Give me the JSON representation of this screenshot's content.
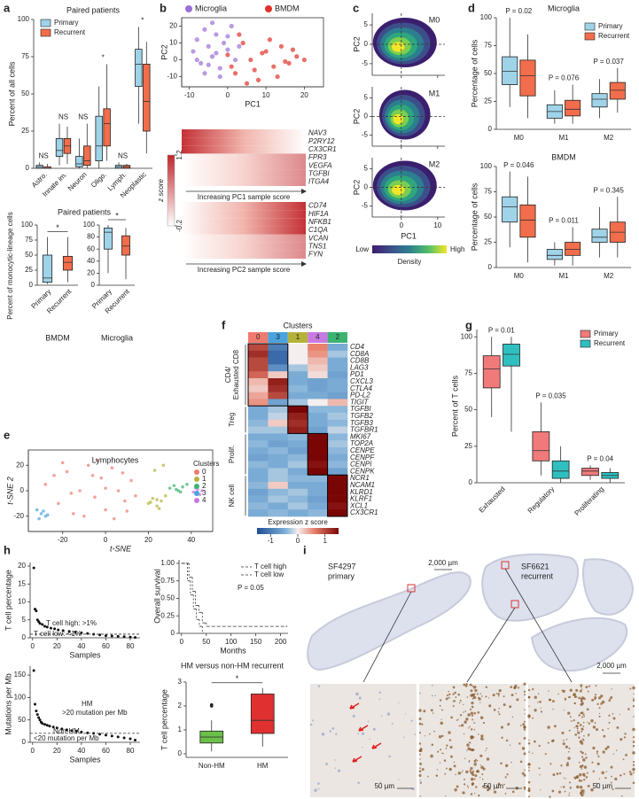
{
  "panel_labels": [
    "a",
    "b",
    "c",
    "d",
    "e",
    "f",
    "g",
    "h",
    "i"
  ],
  "a_top": {
    "title": "Paired patients",
    "ylabel": "Percent of all cells",
    "ylim": [
      0,
      100
    ],
    "yticks": [
      0,
      25,
      50,
      75,
      100
    ],
    "categories": [
      "Astro.",
      "Innate im.",
      "Neuron",
      "Oligo.",
      "Lymph.",
      "Neoplastic"
    ],
    "significance": [
      "NS",
      "NS",
      "NS",
      "*",
      "NS",
      "*"
    ],
    "series": [
      {
        "name": "Primary",
        "color": "#9fd3e8",
        "boxes": [
          [
            0,
            0,
            1,
            2,
            4
          ],
          [
            2,
            8,
            12,
            20,
            30
          ],
          [
            0,
            1,
            3,
            8,
            20
          ],
          [
            0,
            5,
            15,
            35,
            55
          ],
          [
            0,
            0,
            1,
            2,
            4
          ],
          [
            30,
            55,
            70,
            80,
            95
          ]
        ]
      },
      {
        "name": "Recurrent",
        "color": "#f26d4b",
        "boxes": [
          [
            0,
            0,
            0,
            1,
            3
          ],
          [
            3,
            10,
            15,
            20,
            28
          ],
          [
            0,
            2,
            5,
            15,
            30
          ],
          [
            5,
            15,
            30,
            40,
            70
          ],
          [
            0,
            0,
            1,
            2,
            3
          ],
          [
            10,
            25,
            45,
            70,
            85
          ]
        ]
      }
    ]
  },
  "a_bottom": {
    "title": "Paired patients",
    "ylabel": "Percent of monocytic-lineage cells",
    "bmdm": {
      "title": "BMDM",
      "ylim": [
        0,
        100
      ],
      "yticks": [
        0,
        25,
        50,
        75,
        100
      ],
      "categories": [
        "Primary",
        "Recurrent"
      ],
      "box_colors": [
        "#9fd3e8",
        "#f26d4b"
      ],
      "boxes": [
        [
          2,
          5,
          12,
          50,
          80
        ],
        [
          5,
          25,
          38,
          48,
          80
        ]
      ],
      "significance": "*"
    },
    "microglia": {
      "title": "Microglia",
      "ylim": [
        0,
        100
      ],
      "yticks": [
        0,
        20,
        40,
        60,
        80,
        100
      ],
      "categories": [
        "Primary",
        "Recurrent"
      ],
      "box_colors": [
        "#9fd3e8",
        "#f26d4b"
      ],
      "boxes": [
        [
          20,
          60,
          88,
          95,
          100
        ],
        [
          10,
          50,
          65,
          82,
          95
        ]
      ],
      "significance": "*"
    }
  },
  "b": {
    "xlabel": "PC1",
    "ylabel": "PC2",
    "xlim": [
      -12,
      25
    ],
    "xticks": [
      -10,
      0,
      10,
      20
    ],
    "ylim": [
      -16,
      25
    ],
    "yticks": [
      -10,
      0,
      10,
      20
    ],
    "series": [
      {
        "name": "Microglia",
        "color": "#9b6fd6",
        "x": [
          -9,
          -8,
          -7,
          -6,
          -5,
          -4,
          -3,
          -2,
          -1,
          0,
          1,
          2,
          -6,
          -4,
          -2,
          0,
          -8,
          -5,
          -3,
          3
        ],
        "y": [
          5,
          12,
          -2,
          18,
          8,
          2,
          15,
          -5,
          10,
          6,
          20,
          0,
          -8,
          22,
          -10,
          14,
          0,
          -3,
          4,
          8
        ]
      },
      {
        "name": "BMDM",
        "color": "#e0312b",
        "x": [
          0,
          2,
          4,
          6,
          8,
          10,
          12,
          14,
          16,
          18,
          20,
          3,
          7,
          11,
          15,
          5,
          9,
          13,
          17,
          1
        ],
        "y": [
          3,
          -8,
          10,
          0,
          -12,
          5,
          -4,
          8,
          -2,
          2,
          0,
          15,
          -6,
          12,
          -1,
          -14,
          4,
          -10,
          6,
          -4
        ]
      }
    ],
    "heatmap1": {
      "genes": [
        "NAV3",
        "P2RY12",
        "CX3CR1",
        "FPR3",
        "VEGFA",
        "TGFBI",
        "ITGA4"
      ],
      "caption": "Increasing PC1 sample score"
    },
    "heatmap2": {
      "genes": [
        "CD74",
        "HIF1A",
        "NFKB1",
        "C1QA",
        "VCAN",
        "TNS1",
        "FYN"
      ],
      "caption": "Increasing PC2 sample score"
    },
    "colorbar": {
      "label": "z score",
      "ticks": [
        1.2,
        -0.2
      ]
    }
  },
  "c": {
    "labels": [
      "M0",
      "M1",
      "M2"
    ],
    "ylabel": "PC2",
    "xlabel": "PC1",
    "xlim": [
      -8,
      12
    ],
    "xticks": [
      0,
      10
    ],
    "ylim": [
      -8,
      8
    ],
    "yticks": [
      -5,
      0,
      5
    ],
    "colorbar": {
      "low": "Low",
      "high": "High",
      "label": "Density"
    }
  },
  "d": {
    "microglia": {
      "title": "Microglia",
      "ylabel": "Percentage of cells",
      "ylim": [
        0,
        100
      ],
      "yticks": [
        0,
        25,
        50,
        75,
        100
      ],
      "categories": [
        "M0",
        "M1",
        "M2"
      ],
      "pvalues": [
        "P = 0.02",
        "P = 0.076",
        "P = 0.037"
      ],
      "series": [
        {
          "name": "Primary",
          "color": "#9fd3e8",
          "boxes": [
            [
              20,
              40,
              52,
              65,
              100
            ],
            [
              5,
              10,
              16,
              22,
              35
            ],
            [
              10,
              20,
              27,
              32,
              45
            ]
          ]
        },
        {
          "name": "Recurrent",
          "color": "#f26d4b",
          "boxes": [
            [
              10,
              30,
              48,
              62,
              85
            ],
            [
              5,
              12,
              18,
              26,
              40
            ],
            [
              15,
              27,
              35,
              42,
              55
            ]
          ]
        }
      ]
    },
    "bmdm": {
      "title": "BMDM",
      "ylabel": "Percentage of cells",
      "ylim": [
        0,
        100
      ],
      "yticks": [
        0,
        25,
        50,
        75,
        100
      ],
      "categories": [
        "M0",
        "M1",
        "M2"
      ],
      "pvalues": [
        "P = 0.046",
        "P = 0.011",
        "P = 0.345"
      ],
      "series": [
        {
          "color": "#9fd3e8",
          "boxes": [
            [
              20,
              45,
              60,
              70,
              95
            ],
            [
              2,
              8,
              12,
              18,
              25
            ],
            [
              10,
              25,
              30,
              38,
              60
            ]
          ]
        },
        {
          "color": "#f26d4b",
          "boxes": [
            [
              5,
              30,
              47,
              62,
              90
            ],
            [
              2,
              12,
              18,
              25,
              40
            ],
            [
              10,
              25,
              35,
              45,
              70
            ]
          ]
        }
      ]
    }
  },
  "e": {
    "title": "Lymphocytes",
    "xlabel": "t-SNE",
    "ylabel": "t-SNE 2",
    "legend_title": "Clusters",
    "xlim": [
      -36,
      50
    ],
    "xticks": [
      -20,
      0,
      20,
      40
    ],
    "ylim": [
      -32,
      32
    ],
    "yticks": [
      -20,
      0,
      20
    ],
    "series": [
      {
        "name": "0",
        "color": "#f07a6e",
        "x": [
          -28,
          -22,
          -18,
          -15,
          -12,
          -8,
          -5,
          -2,
          0,
          3,
          6,
          9,
          12,
          -20,
          -10,
          0,
          10,
          -16,
          -6,
          4,
          14,
          -24,
          -4,
          8
        ],
        "y": [
          5,
          -10,
          15,
          -18,
          0,
          20,
          -5,
          10,
          -15,
          18,
          0,
          -8,
          8,
          22,
          -20,
          2,
          -16,
          -2,
          12,
          -22,
          -4,
          12,
          24,
          14
        ]
      },
      {
        "name": "1",
        "color": "#b5b23a",
        "x": [
          20,
          22,
          24,
          26,
          28,
          25,
          23,
          27,
          21,
          24
        ],
        "y": [
          -10,
          -6,
          -12,
          -8,
          -4,
          -14,
          16,
          20,
          -9,
          -7
        ]
      },
      {
        "name": "2",
        "color": "#3cb371",
        "x": [
          30,
          32,
          34,
          36,
          38,
          33,
          35
        ],
        "y": [
          2,
          4,
          0,
          3,
          5,
          1,
          -1
        ]
      },
      {
        "name": "3",
        "color": "#4aa3df",
        "x": [
          -32,
          -30,
          -28,
          -31,
          -29,
          -27
        ],
        "y": [
          -15,
          -18,
          -20,
          -22,
          -16,
          -19
        ]
      },
      {
        "name": "4",
        "color": "#c97ae0",
        "x": [
          41,
          43,
          45,
          44,
          42
        ],
        "y": [
          -1,
          1,
          0,
          -3,
          2
        ]
      }
    ]
  },
  "f": {
    "title": "Clusters",
    "clusters": [
      "0",
      "3",
      "1",
      "4",
      "2"
    ],
    "cluster_colors": [
      "#f07a6e",
      "#4aa3df",
      "#b5b23a",
      "#c97ae0",
      "#3cb371"
    ],
    "clim": [
      -1.5,
      1.5
    ],
    "cticks": [
      -1,
      0,
      1
    ],
    "clabel": "Expression z score",
    "groups": [
      {
        "label": [
          "CD4/",
          "Exhausted CD8"
        ],
        "genes": [
          "CD4",
          "CD8A",
          "CD8B",
          "LAG3",
          "PD1",
          "CXCL3",
          "CTLA4",
          "PD-L2",
          "TIGIT"
        ],
        "values": [
          [
            1,
            -1,
            0,
            0.6,
            -0.5
          ],
          [
            1.2,
            -1.2,
            0,
            0.5,
            -0.3
          ],
          [
            1,
            -1.2,
            0,
            0.3,
            -0.5
          ],
          [
            1,
            -0.8,
            -0.3,
            0.2,
            -0.5
          ],
          [
            0.8,
            0.2,
            -0.5,
            0.1,
            -0.6
          ],
          [
            0.3,
            1.3,
            -0.5,
            -0.6,
            -0.5
          ],
          [
            0.2,
            1.2,
            -0.4,
            -0.6,
            -0.5
          ],
          [
            0.4,
            1,
            -0.5,
            -0.5,
            -0.6
          ],
          [
            0.5,
            -0.6,
            -0.3,
            0,
            0.3
          ]
        ]
      },
      {
        "label": [
          "Treg"
        ],
        "genes": [
          "TGFBI",
          "TGFB2",
          "TGFB3",
          "TGFBR1"
        ],
        "values": [
          [
            -0.5,
            -0.3,
            1.5,
            -0.4,
            -0.4
          ],
          [
            -0.5,
            -0.2,
            1.3,
            -0.5,
            -0.3
          ],
          [
            -0.4,
            0.2,
            1.2,
            -0.5,
            -0.4
          ],
          [
            -0.3,
            -0.3,
            1.3,
            -0.6,
            -0.2
          ]
        ]
      },
      {
        "label": [
          "Prolif."
        ],
        "genes": [
          "MKI67",
          "TOP2A",
          "CENPE",
          "CENPF",
          "CENPI",
          "CENPK"
        ],
        "values": [
          [
            -0.5,
            -0.5,
            -0.4,
            1.6,
            -0.4
          ],
          [
            -0.4,
            -0.6,
            -0.5,
            1.5,
            -0.3
          ],
          [
            -0.5,
            -0.4,
            -0.6,
            1.6,
            -0.4
          ],
          [
            -0.6,
            -0.5,
            -0.4,
            1.5,
            -0.5
          ],
          [
            -0.4,
            -0.5,
            -0.3,
            1.4,
            -0.4
          ],
          [
            -0.5,
            -0.3,
            -0.5,
            1.5,
            -0.6
          ]
        ]
      },
      {
        "label": [
          "NK cell"
        ],
        "genes": [
          "NCR1",
          "NCAM1",
          "KLRD1",
          "KLRF1",
          "XCL1",
          "CX3CR1"
        ],
        "values": [
          [
            -0.5,
            -0.3,
            -0.4,
            -0.4,
            1.6
          ],
          [
            -0.4,
            0.2,
            -0.5,
            -0.5,
            1.5
          ],
          [
            -0.6,
            -0.4,
            -0.3,
            -0.5,
            1.6
          ],
          [
            -0.5,
            -0.3,
            -0.4,
            -0.6,
            1.5
          ],
          [
            -0.4,
            -0.5,
            -0.3,
            -0.5,
            1.4
          ],
          [
            -0.5,
            -0.4,
            -0.5,
            -0.4,
            1.6
          ]
        ]
      }
    ]
  },
  "g": {
    "ylabel": "Percent of T cells",
    "ylim": [
      0,
      105
    ],
    "yticks": [
      0,
      25,
      50,
      75,
      100
    ],
    "categories": [
      "Exhausted",
      "Regulatory",
      "Proliferating"
    ],
    "pvalues": [
      "P = 0.01",
      "P = 0.035",
      "P = 0.04"
    ],
    "series": [
      {
        "name": "Primary",
        "color": "#f07a7a",
        "boxes": [
          [
            45,
            65,
            78,
            87,
            100
          ],
          [
            5,
            15,
            22,
            35,
            55
          ],
          [
            2,
            5,
            8,
            10,
            12
          ]
        ]
      },
      {
        "name": "Recurrent",
        "color": "#2fbfbf",
        "boxes": [
          [
            35,
            80,
            88,
            95,
            100
          ],
          [
            0,
            3,
            8,
            15,
            25
          ],
          [
            0,
            3,
            5,
            7,
            10
          ]
        ]
      }
    ]
  },
  "h1": {
    "ylabel": "T cell percentage",
    "xlabel": "Samples",
    "xlim": [
      -2,
      88
    ],
    "xticks": [
      0,
      20,
      40,
      60,
      80
    ],
    "ylim": [
      0,
      21
    ],
    "yticks": [
      0,
      5,
      10,
      15,
      20
    ],
    "threshold": 1,
    "high_label": "T cell high: >1%",
    "low_label": "T cell low: <1%",
    "x": [
      1,
      2,
      3,
      4,
      5,
      6,
      8,
      10,
      12,
      15,
      18,
      21,
      25,
      30,
      35,
      40,
      45,
      50,
      55,
      60,
      65,
      70,
      75,
      80,
      84
    ],
    "y": [
      19.5,
      8,
      7.5,
      5,
      4.5,
      4,
      3.7,
      3.2,
      3,
      2.7,
      2.5,
      2.2,
      2,
      1.8,
      1.6,
      1.4,
      1.2,
      1,
      0.8,
      0.6,
      0.5,
      0.4,
      0.3,
      0.2,
      0.1
    ]
  },
  "h2": {
    "ylabel": "Overall survival",
    "xlabel": "Months",
    "p": "P = 0.05",
    "xlim": [
      -5,
      215
    ],
    "xticks": [
      0,
      50,
      100,
      150,
      200
    ],
    "ylim": [
      0,
      1.05
    ],
    "yticks": [
      0,
      0.25,
      {
        "value": 0.5,
        "label": "0.50"
      },
      0.75,
      {
        "value": 1,
        "label": "1.00"
      }
    ],
    "series": [
      {
        "name": "T cell high",
        "color": "#e0312b",
        "t": [
          0,
          15,
          22,
          28,
          35,
          42,
          50,
          210
        ],
        "s": [
          1,
          0.8,
          0.6,
          0.4,
          0.3,
          0.15,
          0.1,
          0.1
        ]
      },
      {
        "name": "T cell low",
        "color": "#3a6fd0",
        "t": [
          0,
          12,
          18,
          24,
          30,
          36,
          42
        ],
        "s": [
          1,
          0.75,
          0.55,
          0.35,
          0.2,
          0.1,
          0
        ]
      }
    ]
  },
  "h3": {
    "ylabel": "Mutations per Mb",
    "xlabel": "Samples",
    "xlim": [
      -2,
      88
    ],
    "xticks": [
      0,
      20,
      40,
      60,
      80
    ],
    "ylim": [
      0,
      170
    ],
    "yticks": [
      0,
      50,
      100,
      150
    ],
    "threshold": 20,
    "hm_label": "HM",
    "hm_note": ">20 mutation per Mb",
    "non_label": "Non-HM",
    "non_note": "<20 mutation per Mb",
    "x": [
      1,
      2,
      3,
      4,
      5,
      6,
      7,
      8,
      10,
      12,
      14,
      17,
      20,
      24,
      28,
      32,
      36,
      40,
      45,
      50,
      55,
      60,
      65,
      70,
      75,
      80,
      84
    ],
    "y": [
      160,
      85,
      70,
      62,
      55,
      50,
      45,
      42,
      40,
      38,
      36,
      34,
      32,
      30,
      28,
      26,
      25,
      23,
      21,
      20,
      18,
      16,
      14,
      12,
      10,
      8,
      5
    ]
  },
  "h4": {
    "title": "HM versus non-HM recurrent",
    "ylabel": "T cell percentage",
    "ylim": [
      -0.15,
      3
    ],
    "yticks": [
      0,
      1,
      2,
      3
    ],
    "categories": [
      "Non-HM",
      "HM"
    ],
    "box_colors": [
      "#6cc04a",
      "#e03030"
    ],
    "boxes": [
      [
        0.1,
        0.45,
        0.7,
        0.95,
        1.4
      ],
      [
        0.3,
        0.85,
        1.4,
        2.5,
        2.75
      ]
    ],
    "outliers": [
      [
        2,
        2.05
      ],
      []
    ],
    "significance": "*"
  },
  "i": {
    "primary": {
      "sample": "SF4297",
      "status": "primary",
      "scale": "2,000 µm"
    },
    "recurrent": {
      "sample": "SF6621",
      "status": "recurrent",
      "scale": "2,000 µm"
    },
    "zoom_scales": [
      "50 µm",
      "50 µm",
      "50 µm"
    ]
  }
}
